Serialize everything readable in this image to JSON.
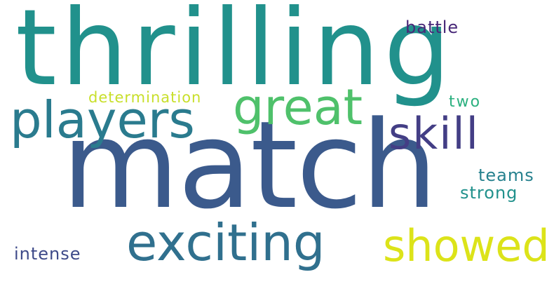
{
  "words": [
    {
      "text": "thrilling",
      "color": "#21918c"
    },
    {
      "text": "match",
      "color": "#3b5a8c"
    },
    {
      "text": "players",
      "color": "#2a7b8e"
    },
    {
      "text": "great",
      "color": "#4fc16b"
    },
    {
      "text": "skill",
      "color": "#433e85"
    },
    {
      "text": "exciting",
      "color": "#30708e"
    },
    {
      "text": "showed",
      "color": "#dce319"
    },
    {
      "text": "battle",
      "color": "#482878"
    },
    {
      "text": "determination",
      "color": "#c8df2a"
    },
    {
      "text": "two",
      "color": "#2bb07f"
    },
    {
      "text": "teams",
      "color": "#26818e"
    },
    {
      "text": "strong",
      "color": "#21918c"
    },
    {
      "text": "intense",
      "color": "#3e4a89"
    }
  ]
}
